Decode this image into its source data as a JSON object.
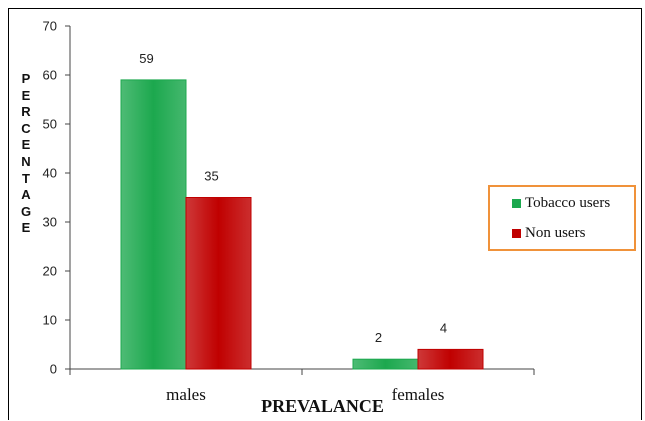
{
  "chart_data": {
    "type": "bar",
    "xlabel": "PREVALANCE",
    "ylabel": "PERCENTAGE",
    "categories": [
      "males",
      "females"
    ],
    "series": [
      {
        "name": "Tobacco users",
        "values": [
          59,
          2
        ],
        "color": "#1ca84e"
      },
      {
        "name": "Non users",
        "values": [
          35,
          4
        ],
        "color": "#c00000"
      }
    ],
    "ylim": [
      0,
      70
    ],
    "yticks": [
      0,
      10,
      20,
      30,
      40,
      50,
      60,
      70
    ],
    "legend_position": "right",
    "grid": false,
    "data_labels": true
  }
}
